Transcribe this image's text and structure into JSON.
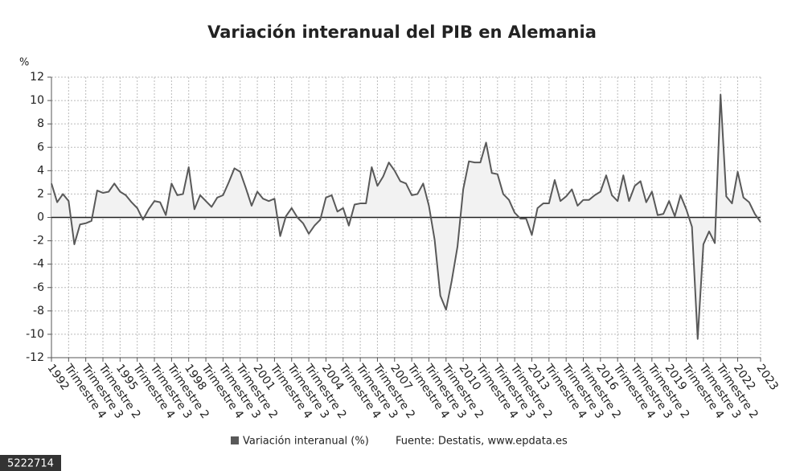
{
  "chart_data": {
    "type": "line",
    "title": "Variación interanual del PIB en Alemania",
    "y_label": "%",
    "source": "Fuente: Destatis, www.epdata.es",
    "id_label": "5222714",
    "categories": [
      "1992",
      null,
      null,
      "Trimestre 4",
      null,
      null,
      "Trimestre 3",
      null,
      null,
      "Trimestre 2",
      null,
      null,
      "1995",
      null,
      null,
      "Trimestre 4",
      null,
      null,
      "Trimestre 3",
      null,
      null,
      "Trimestre 2",
      null,
      null,
      "1998",
      null,
      null,
      "Trimestre 4",
      null,
      null,
      "Trimestre 3",
      null,
      null,
      "Trimestre 2",
      null,
      null,
      "2001",
      null,
      null,
      "Trimestre 4",
      null,
      null,
      "Trimestre 3",
      null,
      null,
      "Trimestre 2",
      null,
      null,
      "2004",
      null,
      null,
      "Trimestre 4",
      null,
      null,
      "Trimestre 3",
      null,
      null,
      "Trimestre 2",
      null,
      null,
      "2007",
      null,
      null,
      "Trimestre 4",
      null,
      null,
      "Trimestre 3",
      null,
      null,
      "Trimestre 2",
      null,
      null,
      "2010",
      null,
      null,
      "Trimestre 4",
      null,
      null,
      "Trimestre 3",
      null,
      null,
      "Trimestre 2",
      null,
      null,
      "2013",
      null,
      null,
      "Trimestre 4",
      null,
      null,
      "Trimestre 3",
      null,
      null,
      "Trimestre 2",
      null,
      null,
      "2016",
      null,
      null,
      "Trimestre 4",
      null,
      null,
      "Trimestre 3",
      null,
      null,
      "Trimestre 2",
      null,
      null,
      "2019",
      null,
      null,
      "Trimestre 4",
      null,
      null,
      "Trimestre 3",
      null,
      null,
      "Trimestre 2",
      null,
      null,
      "2022",
      null,
      null,
      null,
      "2023"
    ],
    "series": [
      {
        "name": "Variación interanual (%)",
        "color": "#595959",
        "values": [
          2.9,
          1.3,
          2.0,
          1.4,
          -2.3,
          -0.6,
          -0.5,
          -0.3,
          2.3,
          2.1,
          2.2,
          2.9,
          2.2,
          1.9,
          1.3,
          0.8,
          -0.2,
          0.7,
          1.4,
          1.3,
          0.2,
          2.9,
          1.9,
          2.0,
          4.3,
          0.7,
          1.9,
          1.4,
          0.9,
          1.7,
          1.9,
          3.0,
          4.2,
          3.9,
          2.5,
          1.0,
          2.2,
          1.6,
          1.4,
          1.6,
          -1.6,
          0.1,
          0.8,
          0.0,
          -0.5,
          -1.4,
          -0.7,
          -0.2,
          1.7,
          1.9,
          0.5,
          0.8,
          -0.7,
          1.1,
          1.2,
          1.2,
          4.3,
          2.7,
          3.5,
          4.7,
          4.0,
          3.1,
          2.9,
          1.9,
          2.0,
          2.9,
          1.0,
          -1.9,
          -6.7,
          -7.9,
          -5.4,
          -2.5,
          2.4,
          4.8,
          4.7,
          4.7,
          6.4,
          3.8,
          3.7,
          2.0,
          1.5,
          0.4,
          -0.1,
          -0.1,
          -1.5,
          0.8,
          1.2,
          1.2,
          3.2,
          1.4,
          1.8,
          2.4,
          1.0,
          1.5,
          1.5,
          1.9,
          2.2,
          3.6,
          1.9,
          1.4,
          3.6,
          1.4,
          2.7,
          3.1,
          1.3,
          2.2,
          0.2,
          0.3,
          1.4,
          0.1,
          1.9,
          0.7,
          -0.8,
          -10.4,
          -2.3,
          -1.2,
          -2.2,
          10.5,
          1.8,
          1.2,
          3.9,
          1.7,
          1.3,
          0.3,
          -0.4
        ]
      }
    ],
    "ylim": [
      -12,
      12
    ],
    "yticks": [
      -12,
      -10,
      -8,
      -6,
      -4,
      -2,
      0,
      2,
      4,
      6,
      8,
      10,
      12
    ],
    "grid": true
  }
}
